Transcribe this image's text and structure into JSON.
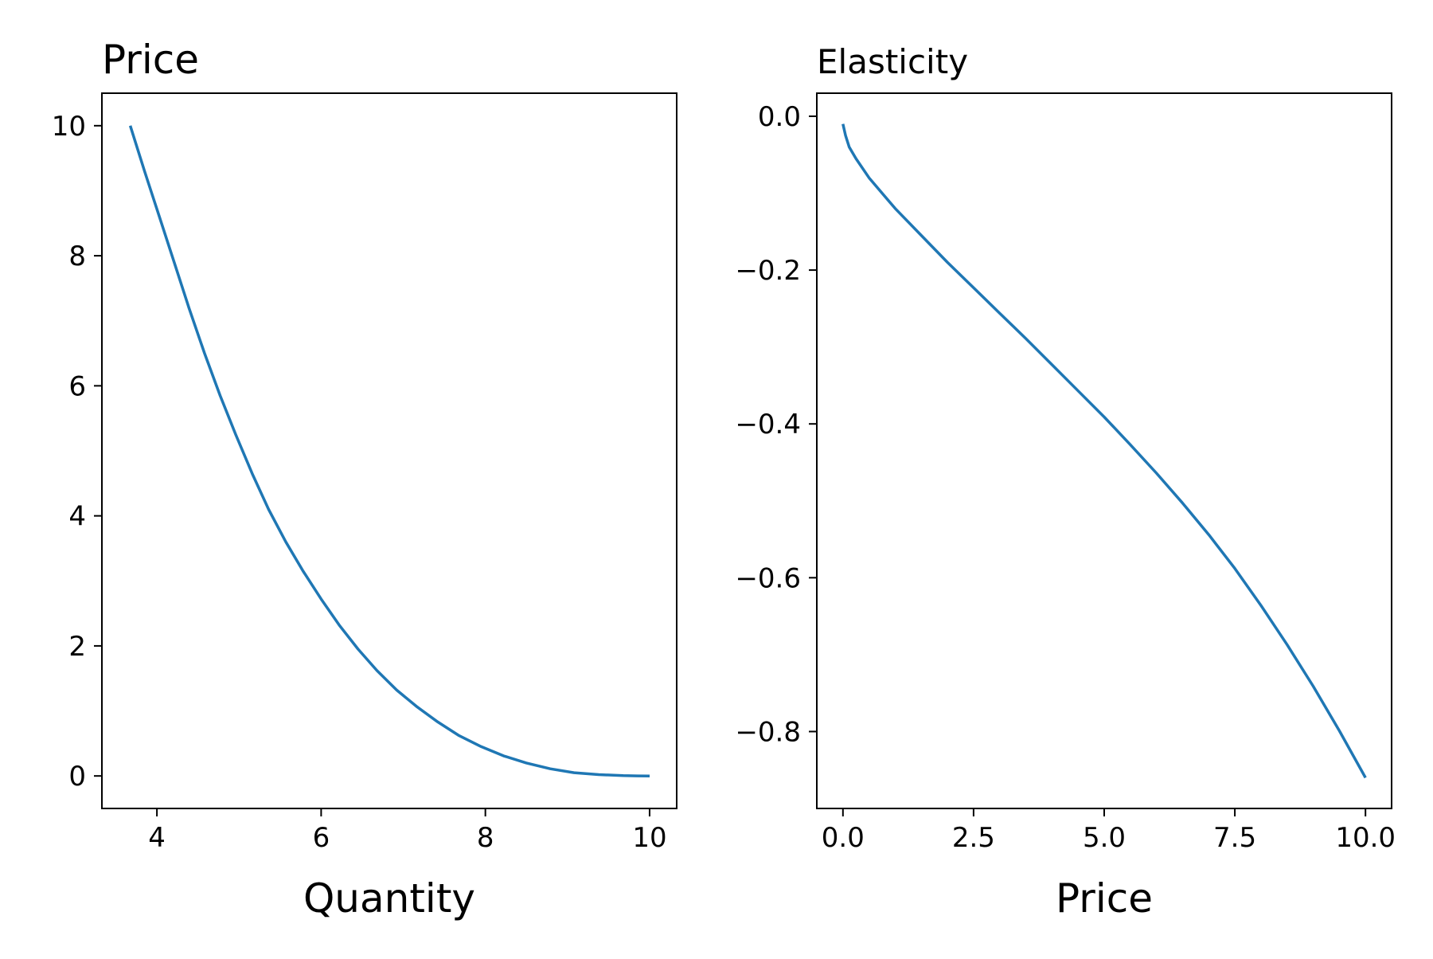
{
  "style": {
    "line_color": "#1f77b4",
    "axis_color": "#000000",
    "background": "#ffffff"
  },
  "chart_data": [
    {
      "type": "line",
      "title": "",
      "xlabel": "Quantity",
      "ylabel": "Price",
      "xlim": [
        3.33,
        10.33
      ],
      "ylim": [
        -0.5,
        10.5
      ],
      "xticks": [
        4,
        6,
        8,
        10
      ],
      "xtick_labels": [
        "4",
        "6",
        "8",
        "10"
      ],
      "yticks": [
        0,
        2,
        4,
        6,
        8,
        10
      ],
      "ytick_labels": [
        "0",
        "2",
        "4",
        "6",
        "8",
        "10"
      ],
      "grid": false,
      "series": [
        {
          "x": [
            3.675,
            3.85,
            4.03,
            4.21,
            4.39,
            4.58,
            4.77,
            4.96,
            5.16,
            5.36,
            5.57,
            5.78,
            6.0,
            6.22,
            6.45,
            6.68,
            6.92,
            7.17,
            7.42,
            7.68,
            7.95,
            8.22,
            8.5,
            8.79,
            9.08,
            9.38,
            9.68,
            9.85,
            10.0
          ],
          "y": [
            10.0,
            9.3,
            8.6,
            7.9,
            7.2,
            6.5,
            5.85,
            5.25,
            4.65,
            4.1,
            3.6,
            3.15,
            2.72,
            2.32,
            1.95,
            1.62,
            1.32,
            1.06,
            0.83,
            0.62,
            0.45,
            0.31,
            0.2,
            0.11,
            0.05,
            0.02,
            0.005,
            0.001,
            0.0
          ]
        }
      ]
    },
    {
      "type": "line",
      "title": "",
      "xlabel": "Price",
      "ylabel": "Elasticity",
      "xlim": [
        -0.5,
        10.5
      ],
      "ylim": [
        -0.9,
        0.03
      ],
      "xticks": [
        0.0,
        2.5,
        5.0,
        7.5,
        10.0
      ],
      "xtick_labels": [
        "0.0",
        "2.5",
        "5.0",
        "7.5",
        "10.0"
      ],
      "yticks": [
        0.0,
        -0.2,
        -0.4,
        -0.6,
        -0.8
      ],
      "ytick_labels": [
        "0.0",
        "−0.2",
        "−0.4",
        "−0.6",
        "−0.8"
      ],
      "grid": false,
      "series": [
        {
          "x": [
            0.0,
            0.05,
            0.12,
            0.25,
            0.5,
            0.75,
            1.0,
            1.5,
            2.0,
            2.5,
            3.0,
            3.5,
            4.0,
            4.5,
            5.0,
            5.5,
            6.0,
            6.5,
            7.0,
            7.5,
            8.0,
            8.5,
            9.0,
            9.5,
            10.0
          ],
          "y": [
            -0.01,
            -0.025,
            -0.04,
            -0.055,
            -0.08,
            -0.1,
            -0.12,
            -0.155,
            -0.19,
            -0.223,
            -0.256,
            -0.289,
            -0.323,
            -0.357,
            -0.391,
            -0.427,
            -0.464,
            -0.503,
            -0.544,
            -0.588,
            -0.636,
            -0.687,
            -0.741,
            -0.799,
            -0.86
          ]
        }
      ]
    }
  ]
}
